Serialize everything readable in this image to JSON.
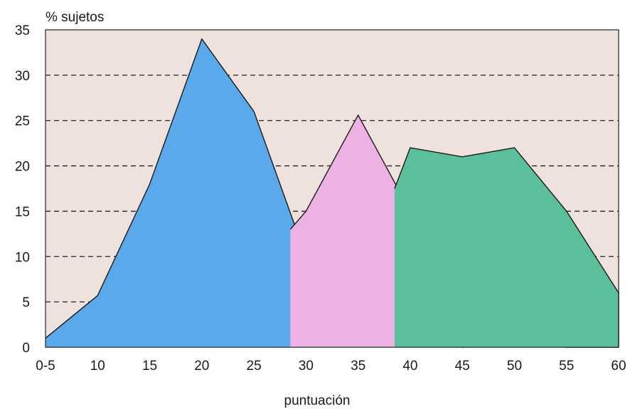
{
  "chart_data": {
    "type": "area",
    "title": "",
    "ylabel": "% sujetos",
    "xlabel": "puntuación",
    "categories": [
      "0-5",
      "10",
      "15",
      "20",
      "25",
      "30",
      "35",
      "40",
      "45",
      "50",
      "55",
      "60"
    ],
    "x": [
      5,
      10,
      15,
      20,
      25,
      30,
      35,
      40,
      45,
      50,
      55,
      60
    ],
    "y_ticks": [
      "0",
      "5",
      "10",
      "15",
      "20",
      "25",
      "30",
      "35"
    ],
    "ylim": [
      0,
      35
    ],
    "xlim": [
      5,
      60
    ],
    "grid": "horizontal dashed",
    "legend": "none",
    "background_color": "#efe2dc",
    "series": [
      {
        "color": "#5aa9ea",
        "points": [
          [
            5,
            1
          ],
          [
            10,
            5.7
          ],
          [
            15,
            18
          ],
          [
            20,
            34
          ],
          [
            25,
            26
          ],
          [
            30,
            10
          ],
          [
            35,
            3
          ],
          [
            40,
            1
          ],
          [
            45,
            0
          ],
          [
            50,
            0.3
          ],
          [
            55,
            0
          ],
          [
            60,
            0
          ]
        ]
      },
      {
        "color": "#eeb1e4",
        "points": [
          [
            28.5,
            13
          ],
          [
            30,
            15
          ],
          [
            35,
            25.6
          ],
          [
            40,
            15
          ],
          [
            45,
            14.8
          ],
          [
            50,
            8.7
          ],
          [
            55,
            7
          ],
          [
            60,
            0
          ]
        ]
      },
      {
        "color": "#5bbf9c",
        "points": [
          [
            38.5,
            17.5
          ],
          [
            40,
            22
          ],
          [
            45,
            21
          ],
          [
            50,
            22
          ],
          [
            55,
            15
          ],
          [
            60,
            6
          ],
          [
            60,
            0
          ]
        ]
      }
    ]
  }
}
